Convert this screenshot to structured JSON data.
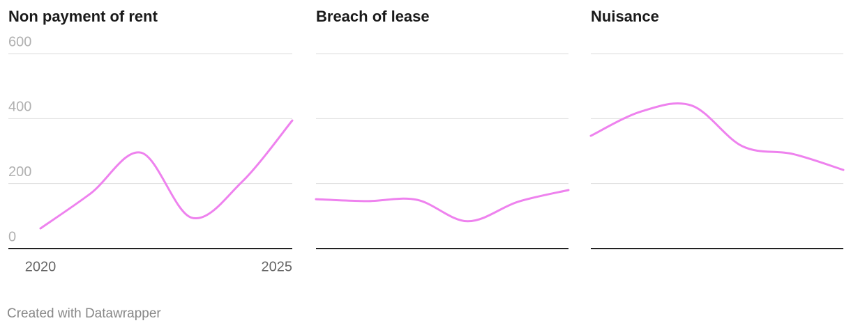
{
  "chart_data": [
    {
      "type": "line",
      "title": "Non payment of rent",
      "x": [
        2020,
        2021,
        2022,
        2023,
        2024,
        2025
      ],
      "values": [
        62,
        170,
        295,
        95,
        205,
        394
      ],
      "color": "#ee82ee",
      "xlim": [
        2020,
        2025
      ],
      "xticks": [
        2020,
        2025
      ],
      "ylim": [
        0,
        600
      ],
      "yticks": [
        0,
        200,
        400,
        600
      ],
      "tick_labels": true,
      "grid": true
    },
    {
      "type": "line",
      "title": "Breach of lease",
      "x": [
        2020,
        2021,
        2022,
        2023,
        2024,
        2025
      ],
      "values": [
        152,
        146,
        150,
        84,
        144,
        180
      ],
      "color": "#ee82ee",
      "xlim": [
        2020,
        2025
      ],
      "ylim": [
        0,
        600
      ],
      "yticks": [
        0,
        200,
        400,
        600
      ],
      "tick_labels": false,
      "grid": true
    },
    {
      "type": "line",
      "title": "Nuisance",
      "x": [
        2020,
        2021,
        2022,
        2023,
        2024,
        2025
      ],
      "values": [
        347,
        422,
        440,
        315,
        291,
        242
      ],
      "color": "#ee82ee",
      "xlim": [
        2020,
        2025
      ],
      "ylim": [
        0,
        600
      ],
      "yticks": [
        0,
        200,
        400,
        600
      ],
      "tick_labels": false,
      "grid": true
    }
  ],
  "credit": "Created with Datawrapper"
}
